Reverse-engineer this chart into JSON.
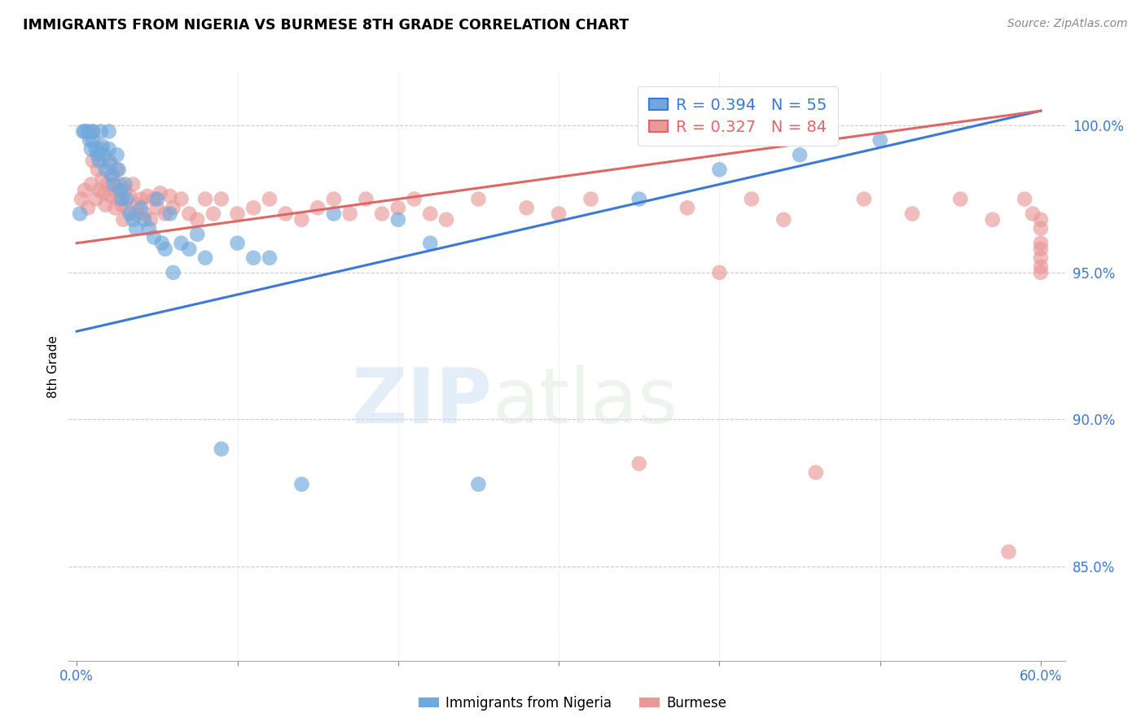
{
  "title": "IMMIGRANTS FROM NIGERIA VS BURMESE 8TH GRADE CORRELATION CHART",
  "source": "Source: ZipAtlas.com",
  "ylabel": "8th Grade",
  "color_nigeria": "#6fa8dc",
  "color_burmese": "#ea9999",
  "color_nigeria_line": "#3c78d8",
  "color_burmese_line": "#e06666",
  "watermark_zip": "ZIP",
  "watermark_atlas": "atlas",
  "nigeria_N": 55,
  "burmese_N": 84,
  "nigeria_R": 0.394,
  "burmese_R": 0.327,
  "xlim": [
    -0.005,
    0.615
  ],
  "ylim": [
    0.818,
    1.018
  ],
  "yticks": [
    0.85,
    0.9,
    0.95,
    1.0
  ],
  "ytick_labels": [
    "85.0%",
    "90.0%",
    "95.0%",
    "100.0%"
  ],
  "xtick_left_label": "0.0%",
  "xtick_right_label": "60.0%",
  "nigeria_line_x": [
    0.0,
    0.6
  ],
  "nigeria_line_y": [
    0.93,
    1.005
  ],
  "burmese_line_x": [
    0.0,
    0.6
  ],
  "burmese_line_y": [
    0.96,
    1.005
  ],
  "nigeria_scatter_x": [
    0.002,
    0.004,
    0.005,
    0.007,
    0.008,
    0.009,
    0.01,
    0.01,
    0.012,
    0.013,
    0.014,
    0.015,
    0.016,
    0.017,
    0.018,
    0.02,
    0.02,
    0.021,
    0.022,
    0.023,
    0.025,
    0.026,
    0.027,
    0.028,
    0.03,
    0.031,
    0.033,
    0.035,
    0.037,
    0.04,
    0.042,
    0.045,
    0.048,
    0.05,
    0.053,
    0.055,
    0.058,
    0.06,
    0.065,
    0.07,
    0.075,
    0.08,
    0.09,
    0.1,
    0.11,
    0.12,
    0.14,
    0.16,
    0.2,
    0.22,
    0.25,
    0.35,
    0.4,
    0.45,
    0.5
  ],
  "nigeria_scatter_y": [
    0.97,
    0.998,
    0.998,
    0.998,
    0.995,
    0.992,
    0.998,
    0.995,
    0.992,
    0.99,
    0.988,
    0.998,
    0.993,
    0.99,
    0.985,
    0.998,
    0.992,
    0.987,
    0.983,
    0.98,
    0.99,
    0.985,
    0.978,
    0.975,
    0.98,
    0.975,
    0.97,
    0.968,
    0.965,
    0.972,
    0.968,
    0.965,
    0.962,
    0.975,
    0.96,
    0.958,
    0.97,
    0.95,
    0.96,
    0.958,
    0.963,
    0.955,
    0.89,
    0.96,
    0.955,
    0.955,
    0.878,
    0.97,
    0.968,
    0.96,
    0.878,
    0.975,
    0.985,
    0.99,
    0.995
  ],
  "burmese_scatter_x": [
    0.003,
    0.005,
    0.007,
    0.009,
    0.01,
    0.01,
    0.012,
    0.013,
    0.014,
    0.015,
    0.016,
    0.017,
    0.018,
    0.019,
    0.02,
    0.021,
    0.022,
    0.023,
    0.024,
    0.025,
    0.026,
    0.027,
    0.028,
    0.029,
    0.03,
    0.031,
    0.033,
    0.035,
    0.037,
    0.038,
    0.04,
    0.042,
    0.044,
    0.046,
    0.048,
    0.05,
    0.052,
    0.055,
    0.058,
    0.06,
    0.065,
    0.07,
    0.075,
    0.08,
    0.085,
    0.09,
    0.1,
    0.11,
    0.12,
    0.13,
    0.14,
    0.15,
    0.16,
    0.17,
    0.18,
    0.19,
    0.2,
    0.21,
    0.22,
    0.23,
    0.25,
    0.28,
    0.3,
    0.32,
    0.35,
    0.38,
    0.4,
    0.42,
    0.44,
    0.46,
    0.49,
    0.52,
    0.55,
    0.57,
    0.58,
    0.59,
    0.595,
    0.6,
    0.6,
    0.6,
    0.6,
    0.6,
    0.6,
    0.6
  ],
  "burmese_scatter_y": [
    0.975,
    0.978,
    0.972,
    0.98,
    0.998,
    0.988,
    0.975,
    0.985,
    0.978,
    0.992,
    0.982,
    0.977,
    0.973,
    0.98,
    0.988,
    0.976,
    0.983,
    0.978,
    0.972,
    0.985,
    0.975,
    0.98,
    0.973,
    0.968,
    0.978,
    0.972,
    0.976,
    0.98,
    0.97,
    0.973,
    0.975,
    0.97,
    0.976,
    0.968,
    0.975,
    0.972,
    0.977,
    0.97,
    0.976,
    0.972,
    0.975,
    0.97,
    0.968,
    0.975,
    0.97,
    0.975,
    0.97,
    0.972,
    0.975,
    0.97,
    0.968,
    0.972,
    0.975,
    0.97,
    0.975,
    0.97,
    0.972,
    0.975,
    0.97,
    0.968,
    0.975,
    0.972,
    0.97,
    0.975,
    0.885,
    0.972,
    0.95,
    0.975,
    0.968,
    0.882,
    0.975,
    0.97,
    0.975,
    0.968,
    0.855,
    0.975,
    0.97,
    0.968,
    0.965,
    0.96,
    0.958,
    0.955,
    0.952,
    0.95
  ]
}
